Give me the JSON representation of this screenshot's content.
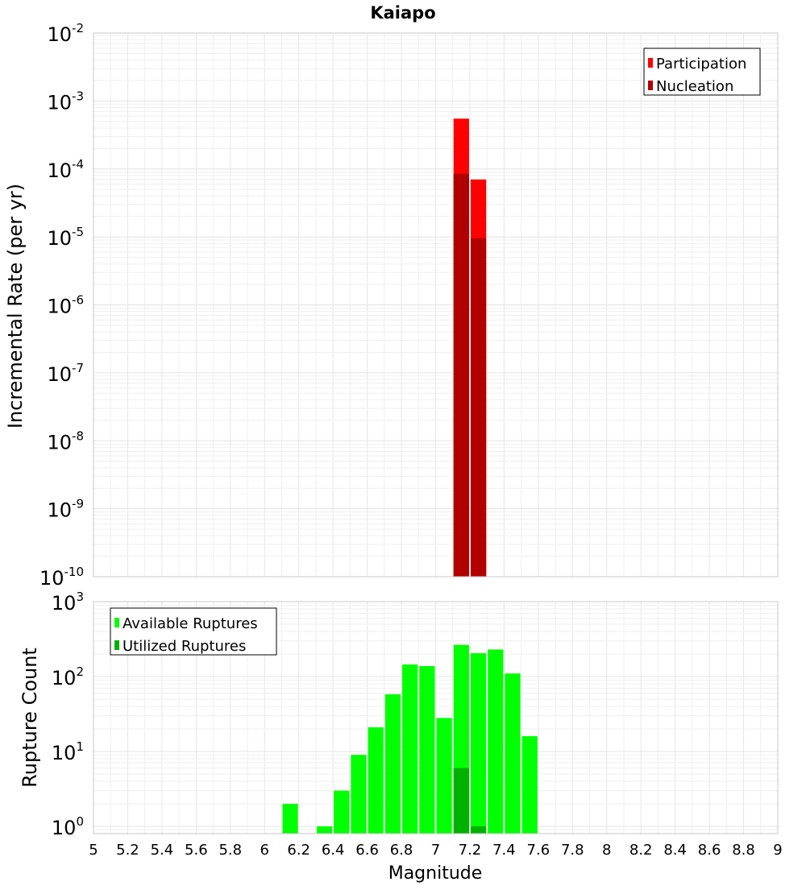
{
  "title": "Kaiapo",
  "chart_data": [
    {
      "type": "bar",
      "title": "Kaiapo",
      "xlabel": "Magnitude",
      "ylabel": "Incremental Rate (per yr)",
      "yscale": "log",
      "xlim": [
        5,
        9
      ],
      "ylim": [
        1e-10,
        0.01
      ],
      "y_tick_exponents": [
        -10,
        -9,
        -8,
        -7,
        -6,
        -5,
        -4,
        -3,
        -2
      ],
      "bar_width": 0.1,
      "grid": true,
      "legend_position": "top-right",
      "series": [
        {
          "name": "Participation",
          "color": "#ff0000",
          "x": [
            7.15,
            7.25
          ],
          "values": [
            0.00055,
            7e-05
          ]
        },
        {
          "name": "Nucleation",
          "color": "#b20000",
          "x": [
            7.15,
            7.25
          ],
          "values": [
            8.5e-05,
            9.5e-06
          ]
        }
      ]
    },
    {
      "type": "bar",
      "xlabel": "Magnitude",
      "ylabel": "Rupture Count",
      "yscale": "log",
      "xlim": [
        5,
        9
      ],
      "ylim": [
        0.8,
        1000
      ],
      "y_tick_exponents": [
        0,
        1,
        2,
        3
      ],
      "x_ticks": [
        "5",
        "5.2",
        "5.4",
        "5.6",
        "5.8",
        "6",
        "6.2",
        "6.4",
        "6.6",
        "6.8",
        "7",
        "7.2",
        "7.4",
        "7.6",
        "7.8",
        "8",
        "8.2",
        "8.4",
        "8.6",
        "8.8",
        "9"
      ],
      "bar_width": 0.1,
      "grid": true,
      "legend_position": "top-left",
      "series": [
        {
          "name": "Available Ruptures",
          "color": "#00ff00",
          "x": [
            6.15,
            6.35,
            6.45,
            6.55,
            6.65,
            6.75,
            6.85,
            6.95,
            7.05,
            7.15,
            7.25,
            7.35,
            7.45,
            7.55
          ],
          "values": [
            2,
            1,
            3,
            9,
            21,
            58,
            145,
            138,
            28,
            265,
            205,
            230,
            110,
            16
          ]
        },
        {
          "name": "Utilized Ruptures",
          "color": "#00b200",
          "x": [
            7.15,
            7.25
          ],
          "values": [
            6,
            1
          ]
        }
      ]
    }
  ]
}
